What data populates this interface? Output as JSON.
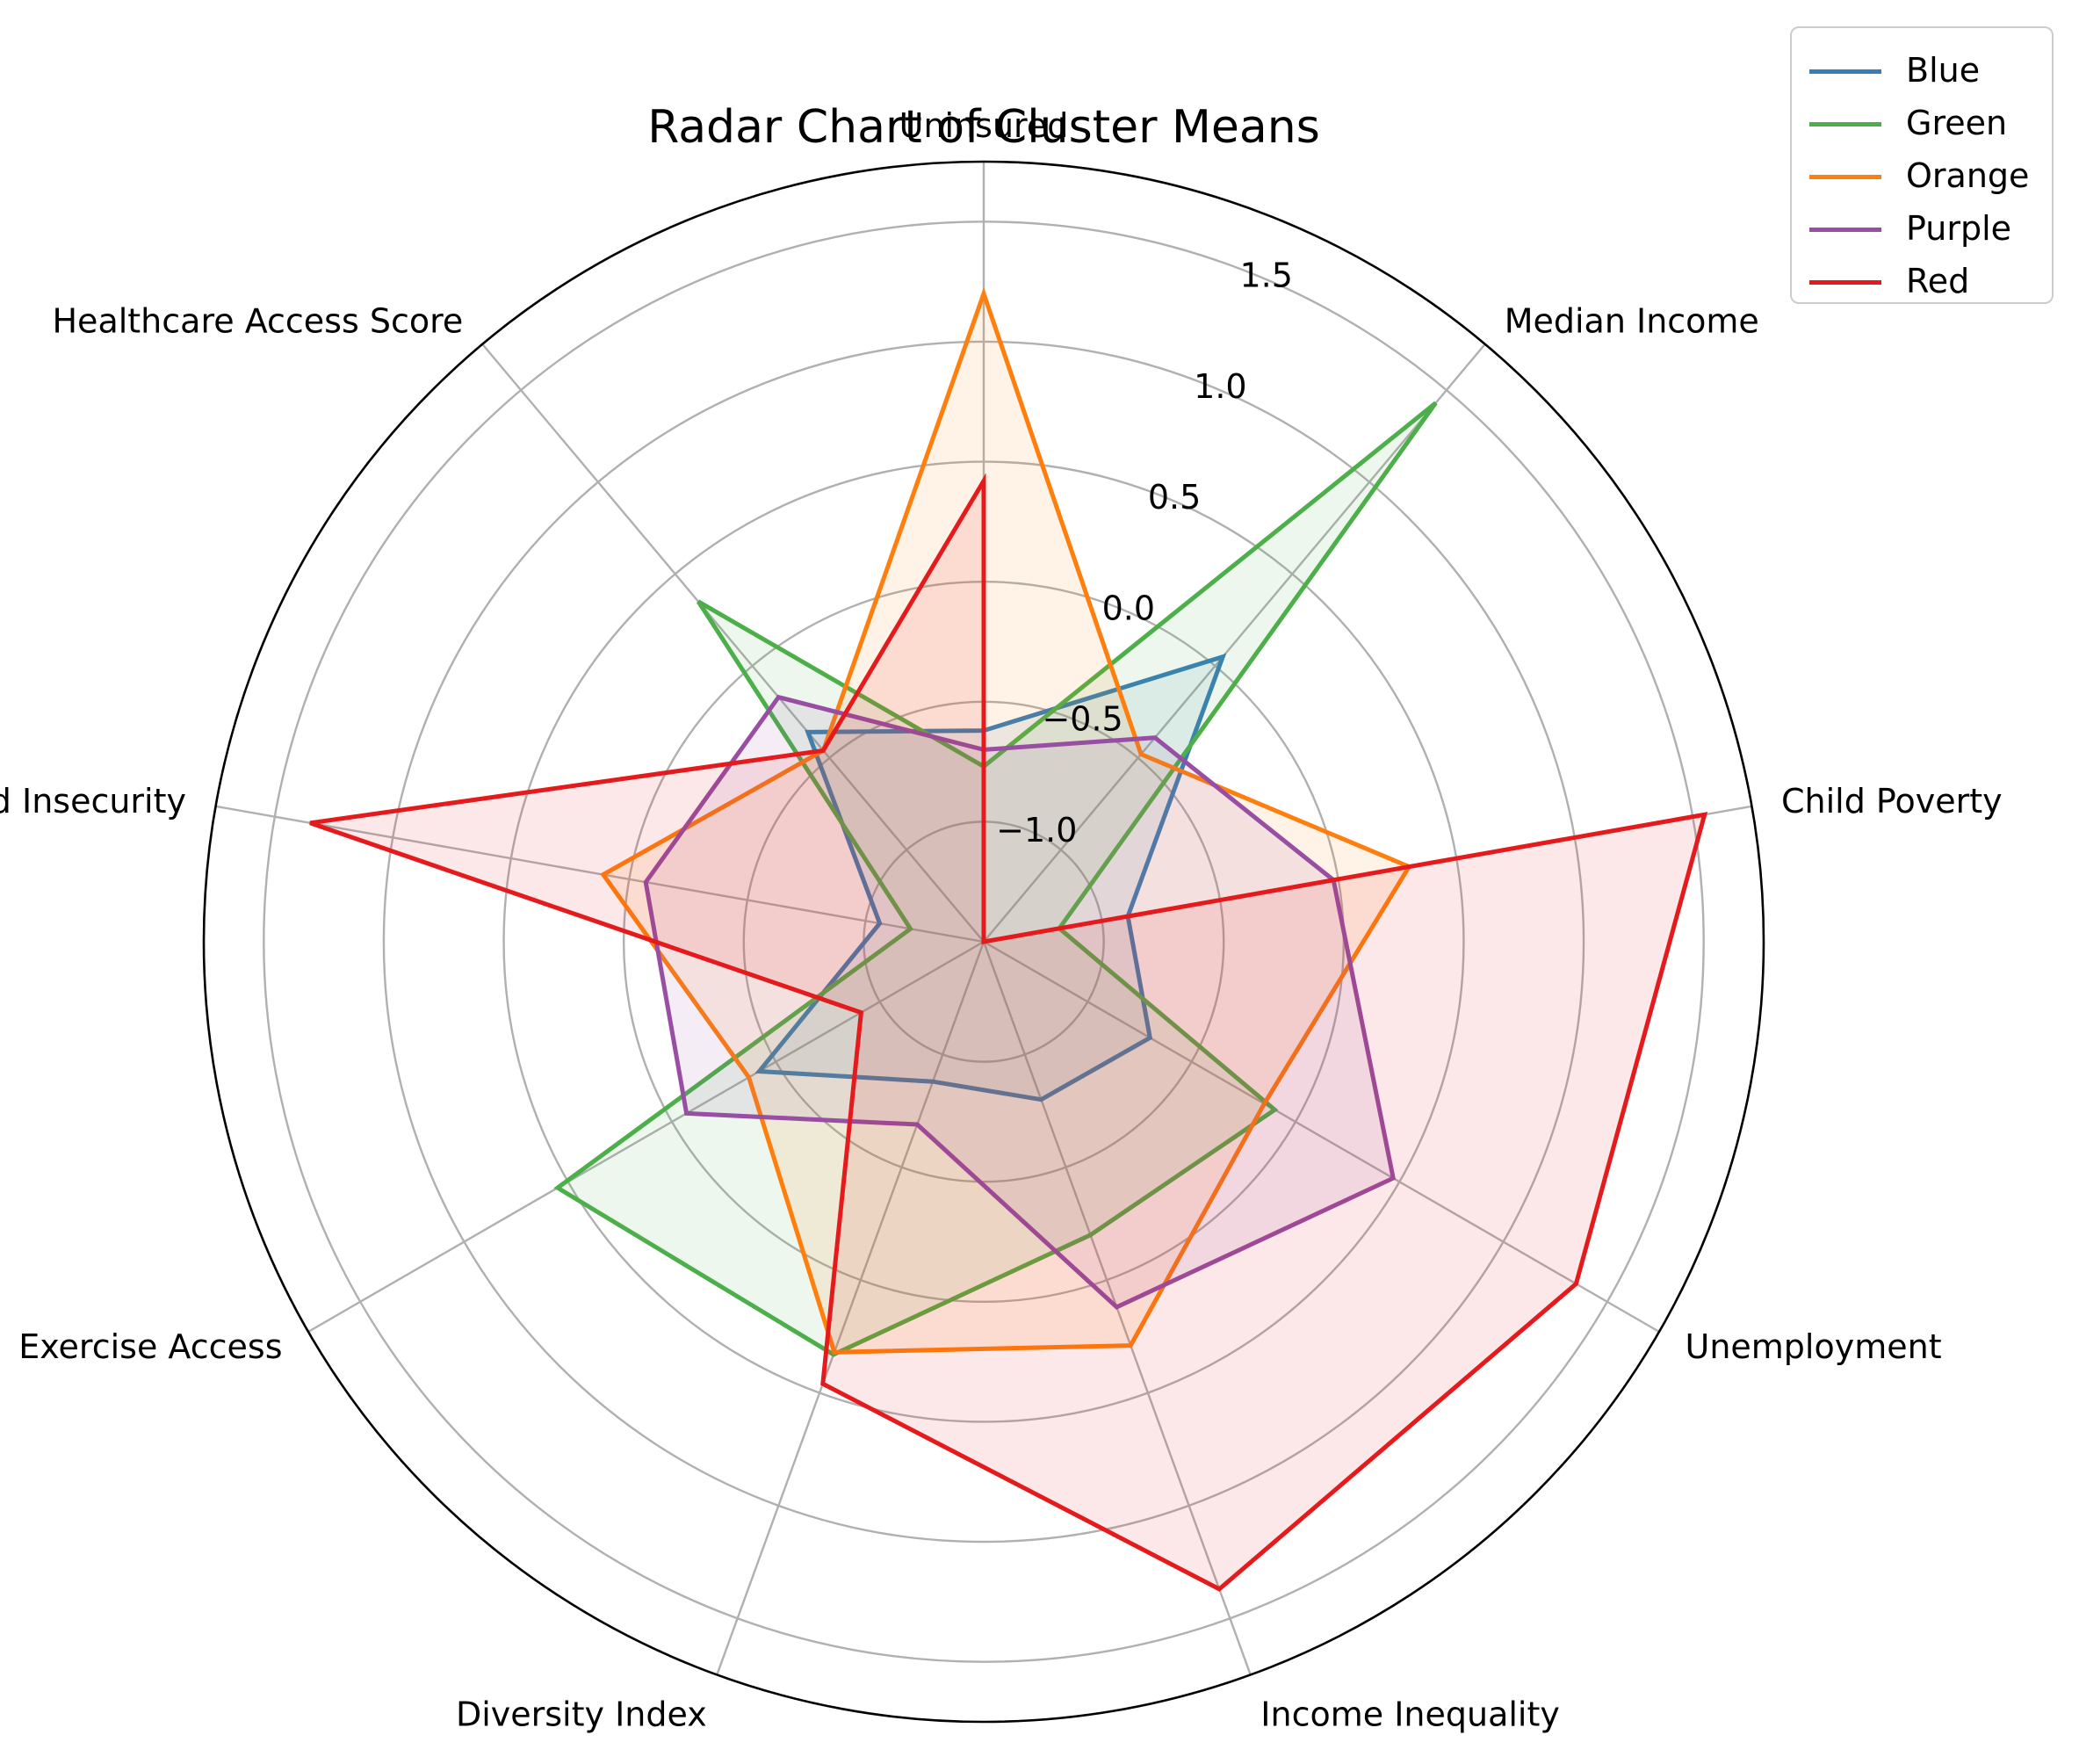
{
  "chart_data": {
    "type": "radar",
    "title": "Radar Chart of Cluster Means",
    "categories": [
      "Uninsured",
      "Median Income",
      "Child Poverty",
      "Unemployment",
      "Income Inequality",
      "Diversity Index",
      "Exercise Access",
      "Food Insecurity",
      "Healthcare Access Score"
    ],
    "rlim": [
      -1.5,
      1.75
    ],
    "rticks": [
      -1.0,
      -0.5,
      0.0,
      0.5,
      1.0,
      1.5
    ],
    "rtick_labels": [
      "−1.0",
      "−0.5",
      "0.0",
      "0.5",
      "1.0",
      "1.5"
    ],
    "grid": true,
    "legend_position": "upper-right",
    "series": [
      {
        "name": "Blue",
        "color": "#377eb8",
        "values": [
          -0.62,
          0.05,
          -0.89,
          -0.7,
          -0.8,
          -0.88,
          -0.42,
          -1.06,
          -0.36
        ]
      },
      {
        "name": "Green",
        "color": "#4daf4a",
        "values": [
          -0.77,
          1.43,
          -1.18,
          -0.1,
          -0.2,
          0.33,
          0.55,
          -1.19,
          0.35
        ]
      },
      {
        "name": "Orange",
        "color": "#ff7f0e",
        "values": [
          1.2,
          -0.48,
          0.3,
          -0.15,
          0.29,
          0.32,
          -0.37,
          0.11,
          -0.46
        ]
      },
      {
        "name": "Purple",
        "color": "#984ea3",
        "values": [
          -0.7,
          -0.39,
          -0.02,
          0.47,
          0.12,
          -0.69,
          -0.07,
          -0.07,
          -0.17
        ]
      },
      {
        "name": "Red",
        "color": "#e41a1c",
        "values": [
          0.42,
          -1.5,
          1.55,
          1.35,
          1.37,
          0.46,
          -0.91,
          1.35,
          -0.46
        ]
      }
    ]
  }
}
